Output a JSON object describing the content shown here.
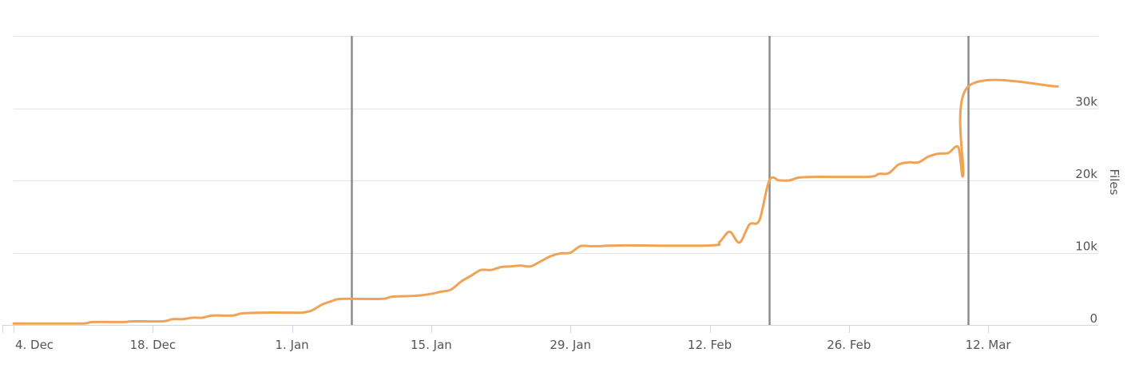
{
  "chart_data": {
    "type": "line",
    "title": "",
    "xlabel": "",
    "ylabel": "Files",
    "y_axis_side": "right",
    "ylim": [
      0,
      40000
    ],
    "y_ticks": [
      {
        "value": 0,
        "label": "0"
      },
      {
        "value": 10000,
        "label": "10k"
      },
      {
        "value": 20000,
        "label": "20k"
      },
      {
        "value": 30000,
        "label": "30k"
      }
    ],
    "x_range": [
      "2017-12-04",
      "2018-03-19"
    ],
    "x_ticks": [
      {
        "value": "2017-12-04",
        "label": "4. Dec"
      },
      {
        "value": "2017-12-18",
        "label": "18. Dec"
      },
      {
        "value": "2018-01-01",
        "label": "1. Jan"
      },
      {
        "value": "2018-01-15",
        "label": "15. Jan"
      },
      {
        "value": "2018-01-29",
        "label": "29. Jan"
      },
      {
        "value": "2018-02-12",
        "label": "12. Feb"
      },
      {
        "value": "2018-02-26",
        "label": "26. Feb"
      },
      {
        "value": "2018-03-12",
        "label": "12. Mar"
      }
    ],
    "grid": true,
    "vertical_markers": [
      "2018-01-07",
      "2018-02-18",
      "2018-03-10"
    ],
    "series": [
      {
        "color": "#f0a355",
        "points": [
          [
            "2017-12-04",
            200
          ],
          [
            "2017-12-08",
            200
          ],
          [
            "2017-12-11",
            200
          ],
          [
            "2017-12-12",
            400
          ],
          [
            "2017-12-15",
            400
          ],
          [
            "2017-12-16",
            500
          ],
          [
            "2017-12-19",
            500
          ],
          [
            "2017-12-20",
            800
          ],
          [
            "2017-12-21",
            800
          ],
          [
            "2017-12-22",
            1000
          ],
          [
            "2017-12-23",
            1000
          ],
          [
            "2017-12-24",
            1300
          ],
          [
            "2017-12-26",
            1300
          ],
          [
            "2017-12-27",
            1600
          ],
          [
            "2017-12-29",
            1700
          ],
          [
            "2018-01-01",
            1700
          ],
          [
            "2018-01-02",
            1700
          ],
          [
            "2018-01-03",
            2000
          ],
          [
            "2018-01-04",
            2800
          ],
          [
            "2018-01-05",
            3300
          ],
          [
            "2018-01-06",
            3600
          ],
          [
            "2018-01-10",
            3600
          ],
          [
            "2018-01-11",
            3900
          ],
          [
            "2018-01-13",
            4000
          ],
          [
            "2018-01-14",
            4100
          ],
          [
            "2018-01-15",
            4300
          ],
          [
            "2018-01-16",
            4600
          ],
          [
            "2018-01-17",
            4900
          ],
          [
            "2018-01-18",
            6000
          ],
          [
            "2018-01-19",
            6800
          ],
          [
            "2018-01-20",
            7600
          ],
          [
            "2018-01-21",
            7600
          ],
          [
            "2018-01-22",
            8000
          ],
          [
            "2018-01-23",
            8100
          ],
          [
            "2018-01-24",
            8200
          ],
          [
            "2018-01-25",
            8100
          ],
          [
            "2018-01-26",
            8800
          ],
          [
            "2018-01-27",
            9500
          ],
          [
            "2018-01-28",
            9900
          ],
          [
            "2018-01-29",
            10000
          ],
          [
            "2018-01-30",
            10900
          ],
          [
            "2018-01-31",
            10900
          ],
          [
            "2018-02-01",
            10900
          ],
          [
            "2018-02-03",
            11000
          ],
          [
            "2018-02-12",
            11000
          ],
          [
            "2018-02-13",
            11500
          ],
          [
            "2018-02-14",
            12900
          ],
          [
            "2018-02-15",
            11400
          ],
          [
            "2018-02-16",
            13900
          ],
          [
            "2018-02-17",
            14500
          ],
          [
            "2018-02-18",
            20000
          ],
          [
            "2018-02-19",
            20000
          ],
          [
            "2018-02-20",
            20000
          ],
          [
            "2018-02-21",
            20400
          ],
          [
            "2018-02-23",
            20500
          ],
          [
            "2018-02-28",
            20500
          ],
          [
            "2018-03-01",
            20900
          ],
          [
            "2018-03-02",
            21000
          ],
          [
            "2018-03-03",
            22200
          ],
          [
            "2018-03-04",
            22500
          ],
          [
            "2018-03-05",
            22500
          ],
          [
            "2018-03-06",
            23300
          ],
          [
            "2018-03-07",
            23700
          ],
          [
            "2018-03-08",
            23800
          ],
          [
            "2018-03-09",
            24600
          ],
          [
            "2018-03-09T12:00",
            20800
          ],
          [
            "2018-03-10",
            33000
          ],
          [
            "2018-03-19",
            33000
          ]
        ]
      }
    ]
  }
}
